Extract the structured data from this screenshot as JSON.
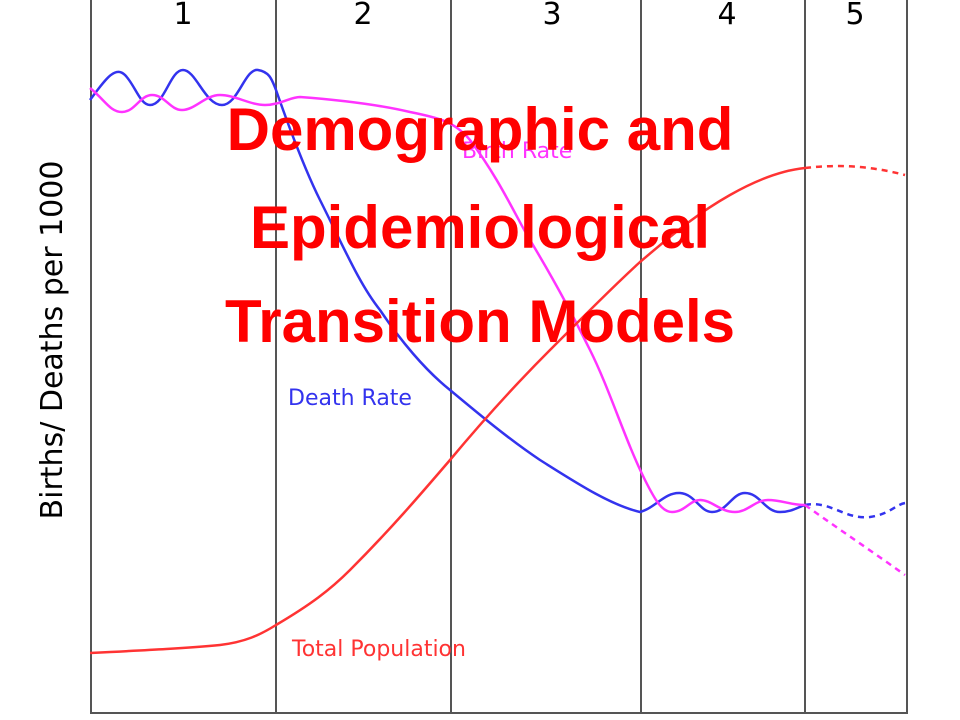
{
  "title": {
    "lines": [
      "Demographic and",
      "Epidemiological",
      "Transition Models"
    ]
  },
  "y_axis_label": "Births/ Deaths per 1000",
  "stages": [
    "1",
    "2",
    "3",
    "4",
    "5"
  ],
  "curve_labels": {
    "birth_rate": "Birth Rate",
    "death_rate": "Death Rate",
    "total_population": "Total Population"
  }
}
